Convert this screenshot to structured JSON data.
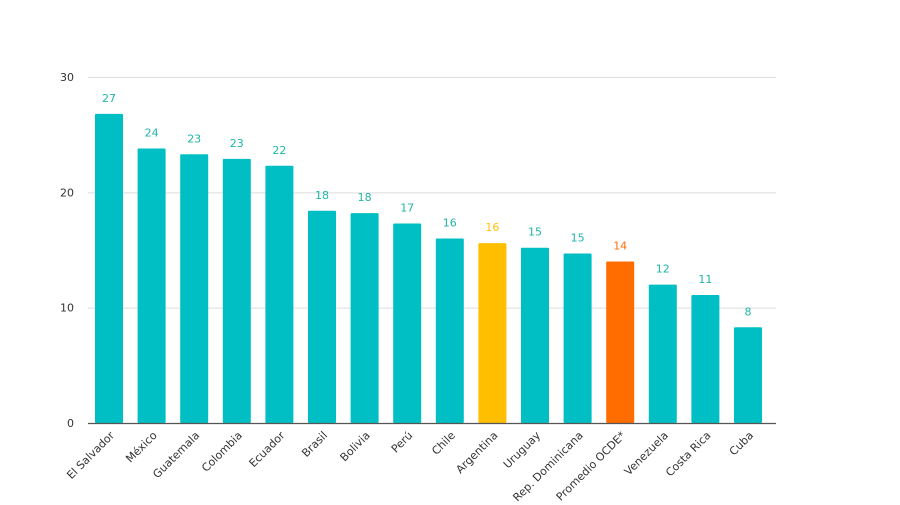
{
  "chart_data": {
    "type": "bar",
    "title": "",
    "xlabel": "",
    "ylabel": "",
    "ylim": [
      0,
      30
    ],
    "yticks": [
      "0",
      "10",
      "20",
      "30"
    ],
    "grid": true,
    "categories": [
      "El Salvador",
      "México",
      "Guatemala",
      "Colombia",
      "Ecuador",
      "Brasil",
      "Bolivia",
      "Perú",
      "Chile",
      "Argentina",
      "Uruguay",
      "Rep. Dominicana",
      "Promedio OCDE*",
      "Venezuela",
      "Costa Rica",
      "Cuba"
    ],
    "values": [
      26.8,
      23.8,
      23.3,
      22.9,
      22.3,
      18.4,
      18.2,
      17.3,
      16.0,
      15.6,
      15.2,
      14.7,
      14.0,
      12.0,
      11.1,
      8.3
    ],
    "data_labels": [
      "27",
      "24",
      "23",
      "23",
      "22",
      "18",
      "18",
      "17",
      "16",
      "16",
      "15",
      "15",
      "14",
      "12",
      "11",
      "8"
    ],
    "colors": {
      "default": "#00BFC4",
      "default_label": "#1FB5A6",
      "Argentina": "#FFBF00",
      "Promedio OCDE*": "#FF6D00"
    }
  }
}
